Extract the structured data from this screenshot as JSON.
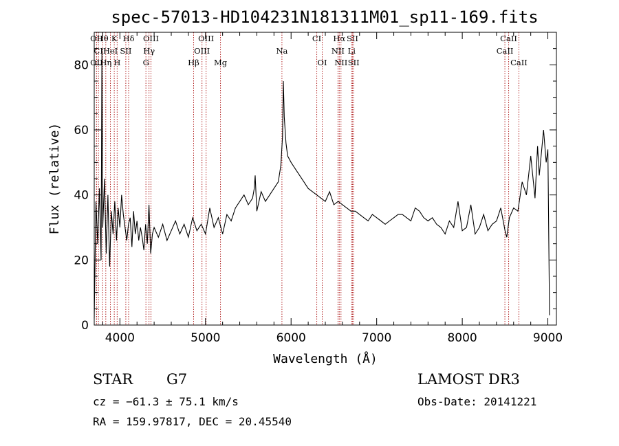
{
  "chart_data": {
    "type": "line",
    "title": "spec-57013-HD104231N181311M01_sp11-169.fits",
    "xlabel": "Wavelength (Å)",
    "ylabel": "Flux (relative)",
    "xlim": [
      3700,
      9100
    ],
    "ylim": [
      0,
      90
    ],
    "x_ticks": [
      4000,
      5000,
      6000,
      7000,
      8000,
      9000
    ],
    "y_ticks": [
      0,
      20,
      40,
      60,
      80
    ],
    "grid": false,
    "series": [
      {
        "x": [
          3700,
          3720,
          3740,
          3760,
          3780,
          3790,
          3800,
          3820,
          3840,
          3860,
          3880,
          3900,
          3920,
          3940,
          3960,
          3980,
          4000,
          4020,
          4040,
          4060,
          4080,
          4100,
          4120,
          4140,
          4160,
          4180,
          4200,
          4220,
          4240,
          4260,
          4280,
          4300,
          4320,
          4340,
          4360,
          4380,
          4400,
          4450,
          4500,
          4550,
          4600,
          4650,
          4700,
          4750,
          4800,
          4850,
          4900,
          4950,
          5000,
          5050,
          5100,
          5150,
          5200,
          5250,
          5300,
          5350,
          5400,
          5450,
          5500,
          5550,
          5570,
          5580,
          5600,
          5650,
          5700,
          5750,
          5800,
          5850,
          5880,
          5900,
          5910,
          5920,
          5940,
          5960,
          6000,
          6050,
          6100,
          6150,
          6200,
          6250,
          6300,
          6350,
          6400,
          6450,
          6500,
          6550,
          6600,
          6650,
          6700,
          6750,
          6800,
          6850,
          6900,
          6950,
          7000,
          7050,
          7100,
          7150,
          7200,
          7250,
          7300,
          7350,
          7400,
          7450,
          7500,
          7550,
          7600,
          7650,
          7700,
          7750,
          7800,
          7850,
          7900,
          7950,
          8000,
          8050,
          8100,
          8150,
          8200,
          8250,
          8300,
          8350,
          8400,
          8450,
          8500,
          8520,
          8550,
          8600,
          8650,
          8700,
          8750,
          8800,
          8850,
          8880,
          8900,
          8950,
          8980,
          9000,
          9020
        ],
        "values": [
          2,
          38,
          25,
          42,
          20,
          85,
          30,
          45,
          22,
          40,
          18,
          35,
          28,
          38,
          26,
          36,
          30,
          40,
          34,
          30,
          26,
          31,
          33,
          24,
          35,
          28,
          32,
          26,
          30,
          27,
          23,
          31,
          25,
          37,
          22,
          28,
          30,
          27,
          31,
          26,
          29,
          32,
          28,
          31,
          27,
          33,
          29,
          31,
          28,
          36,
          30,
          33,
          28,
          34,
          32,
          36,
          38,
          40,
          37,
          39,
          42,
          46,
          35,
          41,
          38,
          40,
          42,
          44,
          49,
          58,
          75,
          64,
          56,
          52,
          50,
          48,
          46,
          44,
          42,
          41,
          40,
          39,
          38,
          41,
          37,
          38,
          37,
          36,
          35,
          35,
          34,
          33,
          32,
          34,
          33,
          32,
          31,
          32,
          33,
          34,
          34,
          33,
          32,
          36,
          35,
          33,
          32,
          33,
          31,
          30,
          28,
          32,
          30,
          38,
          29,
          30,
          37,
          28,
          30,
          34,
          29,
          31,
          32,
          36,
          29,
          27,
          33,
          36,
          35,
          44,
          40,
          52,
          39,
          55,
          46,
          60,
          50,
          54,
          3
        ]
      }
    ],
    "line_markers": [
      {
        "label": "Hθ",
        "x": 3798,
        "row": 0
      },
      {
        "label": "OII",
        "x": 3727,
        "row": 0
      },
      {
        "label": "K",
        "x": 3934,
        "row": 0
      },
      {
        "label": "Hδ",
        "x": 4102,
        "row": 0
      },
      {
        "label": "OIII",
        "x": 4363,
        "row": 0
      },
      {
        "label": "OIII",
        "x": 5007,
        "row": 0
      },
      {
        "label": "CI",
        "x": 6300,
        "row": 0
      },
      {
        "label": "Hα",
        "x": 6563,
        "row": 0
      },
      {
        "label": "SII",
        "x": 6717,
        "row": 0
      },
      {
        "label": "CaII",
        "x": 8542,
        "row": 0
      },
      {
        "label": "CI",
        "x": 3750,
        "row": 1
      },
      {
        "label": "HeI",
        "x": 3889,
        "row": 1
      },
      {
        "label": "SII",
        "x": 4069,
        "row": 1
      },
      {
        "label": "Hγ",
        "x": 4340,
        "row": 1
      },
      {
        "label": "OIII",
        "x": 4959,
        "row": 1
      },
      {
        "label": "Na",
        "x": 5893,
        "row": 1
      },
      {
        "label": "NII",
        "x": 6548,
        "row": 1
      },
      {
        "label": "Li",
        "x": 6708,
        "row": 1
      },
      {
        "label": "CaII",
        "x": 8498,
        "row": 1
      },
      {
        "label": "OII",
        "x": 3727,
        "row": 2
      },
      {
        "label": "Hη",
        "x": 3835,
        "row": 2
      },
      {
        "label": "H",
        "x": 3968,
        "row": 2
      },
      {
        "label": "G",
        "x": 4304,
        "row": 2
      },
      {
        "label": "Hβ",
        "x": 4861,
        "row": 2
      },
      {
        "label": "Mg",
        "x": 5175,
        "row": 2
      },
      {
        "label": "OI",
        "x": 6364,
        "row": 2
      },
      {
        "label": "NII",
        "x": 6583,
        "row": 2
      },
      {
        "label": "SII",
        "x": 6731,
        "row": 2
      },
      {
        "label": "CaII",
        "x": 8662,
        "row": 2
      }
    ]
  },
  "info": {
    "class_label": "STAR",
    "subclass_label": "G7",
    "cz": "cz = −61.3 ± 75.1 km/s",
    "radec": "RA = 159.97817, DEC =  20.45540",
    "survey": "LAMOST DR3",
    "obs_date": "Obs-Date: 20141221"
  },
  "colors": {
    "spectrum": "#000000",
    "marker": "#b22222"
  }
}
